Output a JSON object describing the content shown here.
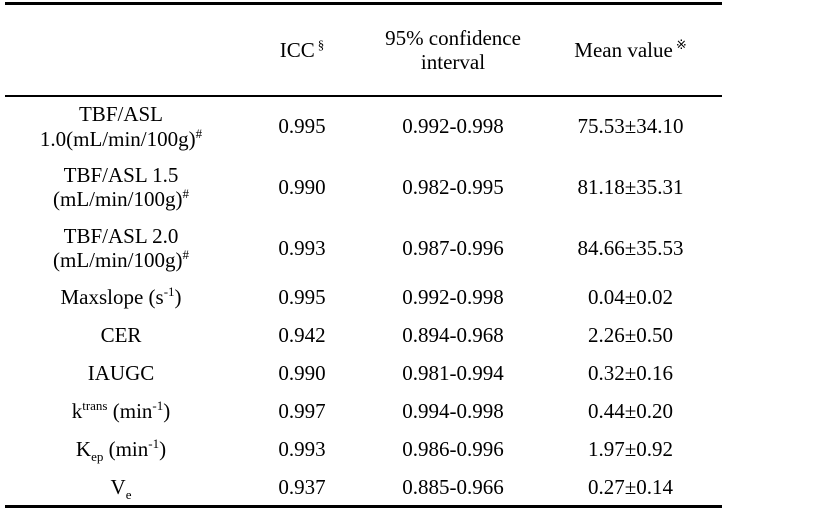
{
  "table": {
    "header": {
      "param": "",
      "icc": "ICC",
      "icc_sup": "§",
      "ci": "95% confidence interval",
      "mean": "Mean value",
      "mean_sup": "※"
    },
    "rows": [
      {
        "label_parts": [
          {
            "mode": "text",
            "t": "TBF/ASL"
          },
          {
            "mode": "break"
          },
          {
            "mode": "text",
            "t": "1.0(mL/min/100g)"
          },
          {
            "mode": "sup",
            "t": "#"
          }
        ],
        "icc": "0.995",
        "ci": "0.992-0.998",
        "mean": "75.53±34.10"
      },
      {
        "label_parts": [
          {
            "mode": "text",
            "t": "TBF/ASL 1.5"
          },
          {
            "mode": "break"
          },
          {
            "mode": "text",
            "t": "(mL/min/100g)"
          },
          {
            "mode": "sup",
            "t": "#"
          }
        ],
        "icc": "0.990",
        "ci": "0.982-0.995",
        "mean": "81.18±35.31"
      },
      {
        "label_parts": [
          {
            "mode": "text",
            "t": "TBF/ASL 2.0"
          },
          {
            "mode": "break"
          },
          {
            "mode": "text",
            "t": "(mL/min/100g)"
          },
          {
            "mode": "sup",
            "t": "#"
          }
        ],
        "icc": "0.993",
        "ci": "0.987-0.996",
        "mean": "84.66±35.53"
      },
      {
        "label_parts": [
          {
            "mode": "text",
            "t": "Maxslope (s"
          },
          {
            "mode": "sup",
            "t": "-1"
          },
          {
            "mode": "text",
            "t": ")"
          }
        ],
        "icc": "0.995",
        "ci": "0.992-0.998",
        "mean": "0.04±0.02"
      },
      {
        "label_parts": [
          {
            "mode": "text",
            "t": "CER"
          }
        ],
        "icc": "0.942",
        "ci": "0.894-0.968",
        "mean": "2.26±0.50"
      },
      {
        "label_parts": [
          {
            "mode": "text",
            "t": "IAUGC"
          }
        ],
        "icc": "0.990",
        "ci": "0.981-0.994",
        "mean": "0.32±0.16"
      },
      {
        "label_parts": [
          {
            "mode": "text",
            "t": "k"
          },
          {
            "mode": "sup",
            "t": "trans"
          },
          {
            "mode": "text",
            "t": " (min"
          },
          {
            "mode": "sup",
            "t": "-1"
          },
          {
            "mode": "text",
            "t": ")"
          }
        ],
        "icc": "0.997",
        "ci": "0.994-0.998",
        "mean": "0.44±0.20"
      },
      {
        "label_parts": [
          {
            "mode": "text",
            "t": "K"
          },
          {
            "mode": "sub",
            "t": "ep"
          },
          {
            "mode": "text",
            "t": " (min"
          },
          {
            "mode": "sup",
            "t": "-1"
          },
          {
            "mode": "text",
            "t": ")"
          }
        ],
        "icc": "0.993",
        "ci": "0.986-0.996",
        "mean": "1.97±0.92"
      },
      {
        "label_parts": [
          {
            "mode": "text",
            "t": "V"
          },
          {
            "mode": "sub",
            "t": "e"
          }
        ],
        "icc": "0.937",
        "ci": "0.885-0.966",
        "mean": "0.27±0.14"
      }
    ]
  }
}
